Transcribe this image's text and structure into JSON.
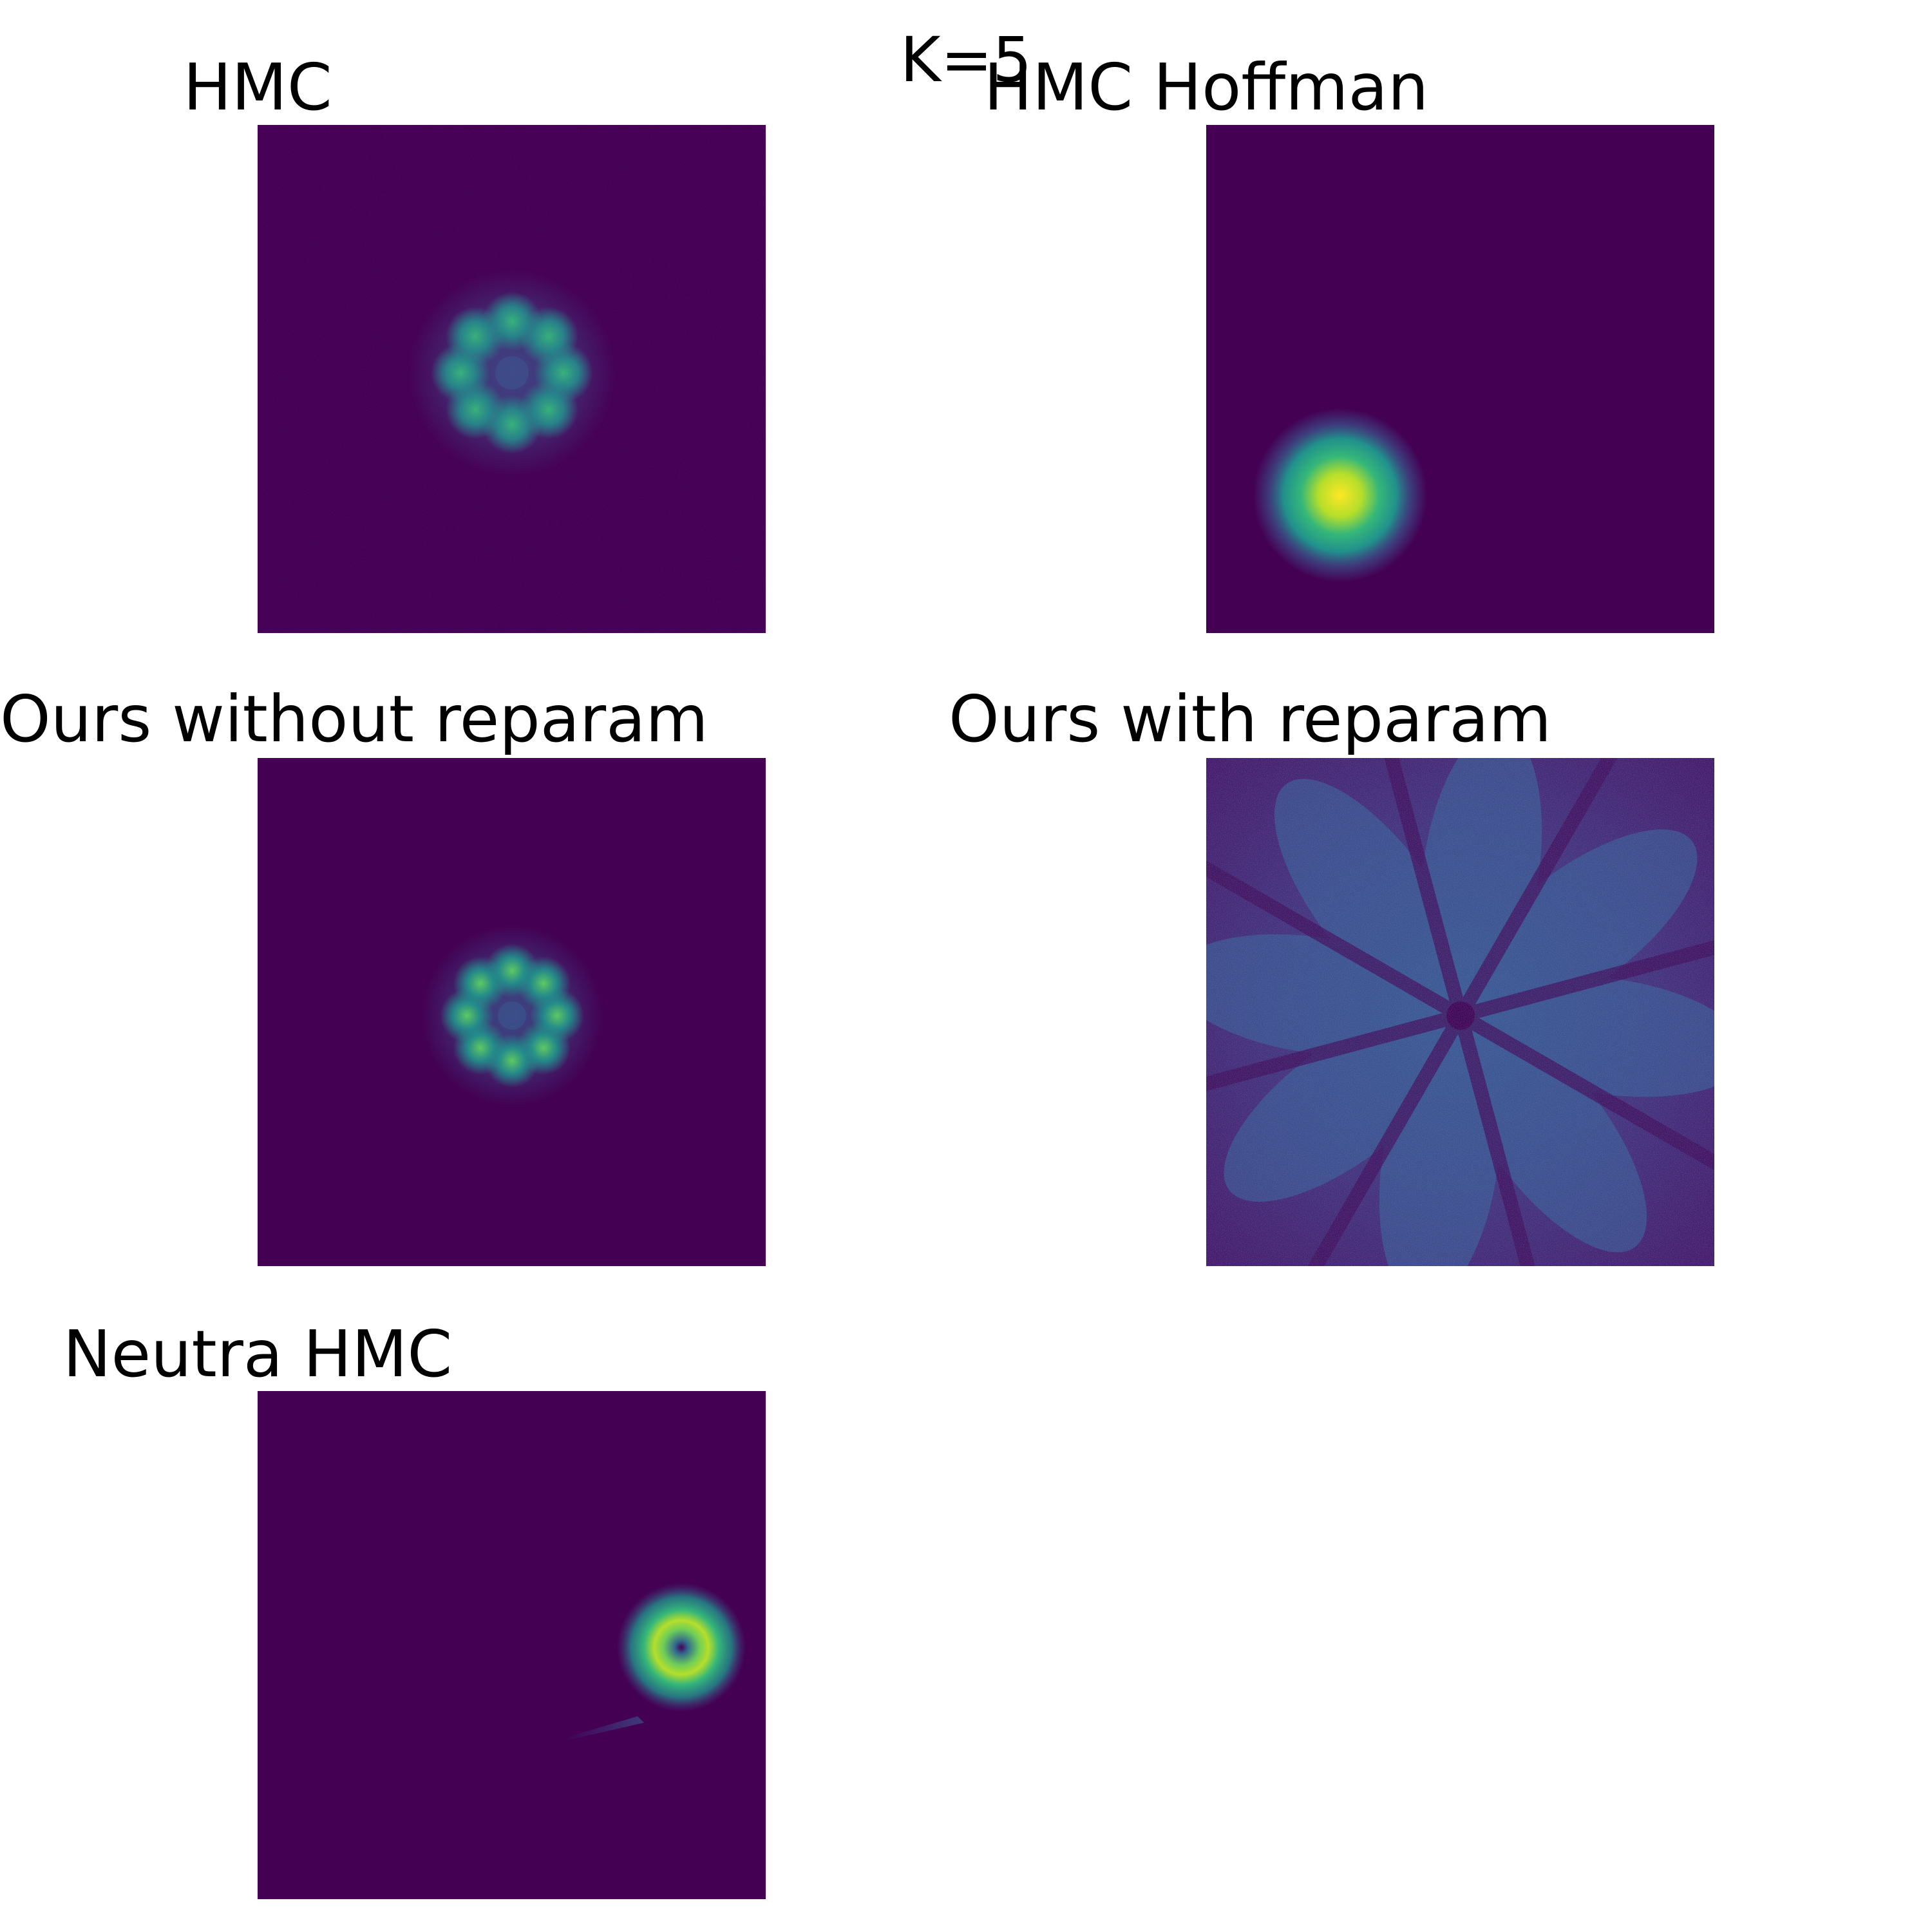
{
  "figure": {
    "title": "K=5"
  },
  "chart_data": [
    {
      "type": "heatmap",
      "title": "HMC",
      "description": "eight-lobed ring of density centred in the panel",
      "colormap": "viridis",
      "background": "#440154"
    },
    {
      "type": "heatmap",
      "title": "HMC Hoffman",
      "description": "single bright blob in lower-left",
      "colormap": "viridis",
      "background": "#440154"
    },
    {
      "type": "heatmap",
      "title": "Ours without reparam",
      "description": "eight-lobed ring of density centred in the panel",
      "colormap": "viridis",
      "background": "#440154"
    },
    {
      "type": "heatmap",
      "title": "Ours with reparam",
      "description": "diffuse density filling panel with eight radial arms",
      "colormap": "viridis",
      "background": "#440154"
    },
    {
      "type": "heatmap",
      "title": "Neutra HMC",
      "description": "small bright ring right of centre with faint tail",
      "colormap": "viridis",
      "background": "#440154"
    }
  ]
}
